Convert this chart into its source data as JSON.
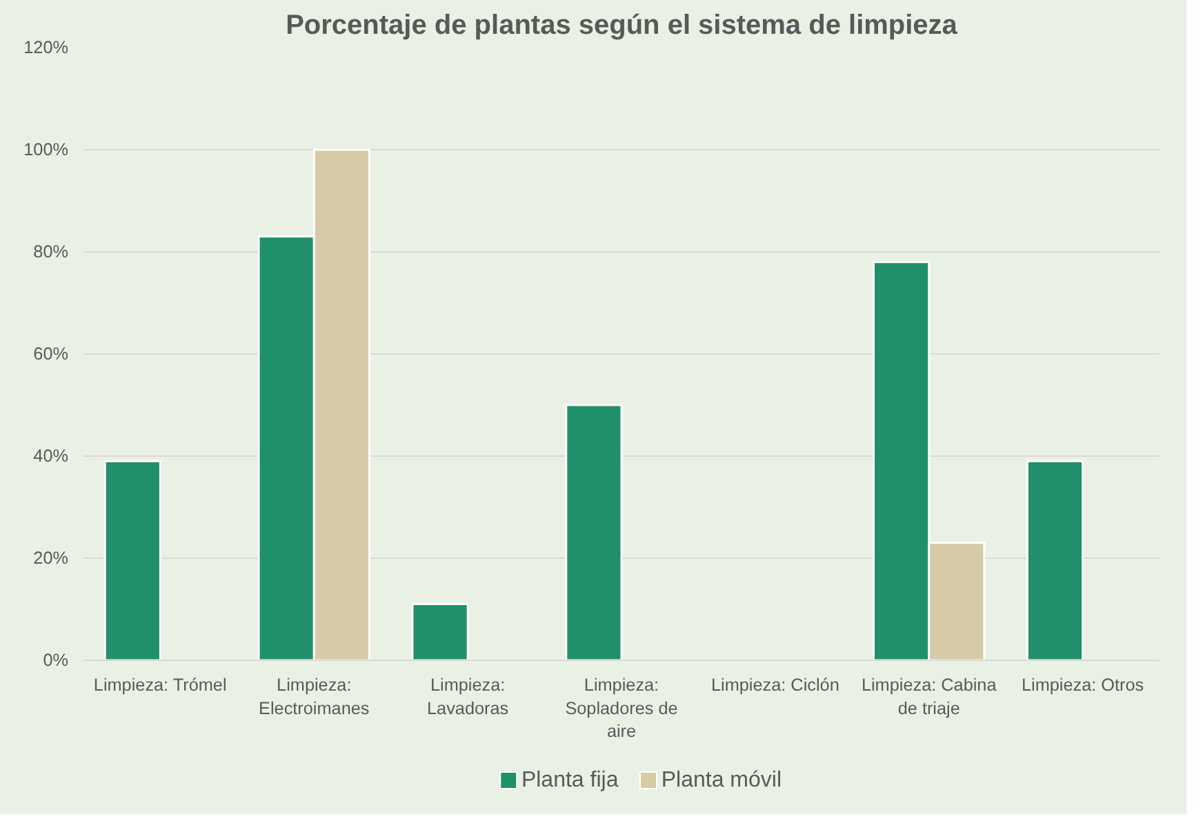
{
  "chart_data": {
    "type": "bar",
    "title": "Porcentaje de plantas según el sistema de limpieza",
    "categories": [
      "Limpieza: Trómel",
      "Limpieza: Electroimanes",
      "Limpieza: Lavadoras",
      "Limpieza: Sopladores de aire",
      "Limpieza: Ciclón",
      "Limpieza: Cabina de triaje",
      "Limpieza: Otros"
    ],
    "series": [
      {
        "name": "Planta fija",
        "color": "#20906a",
        "values": [
          39,
          83,
          11,
          50,
          null,
          78,
          39
        ]
      },
      {
        "name": "Planta móvil",
        "color": "#d6cba6",
        "values": [
          null,
          100,
          null,
          null,
          null,
          23,
          null
        ]
      }
    ],
    "ylim": [
      0,
      120
    ],
    "yticks": [
      {
        "value": 0,
        "label": "0%"
      },
      {
        "value": 20,
        "label": "20%"
      },
      {
        "value": 40,
        "label": "40%"
      },
      {
        "value": 60,
        "label": "60%"
      },
      {
        "value": 80,
        "label": "80%"
      },
      {
        "value": 100,
        "label": "100%"
      },
      {
        "value": 120,
        "label": "120%"
      }
    ],
    "grid": "y",
    "legend": "bottom"
  }
}
